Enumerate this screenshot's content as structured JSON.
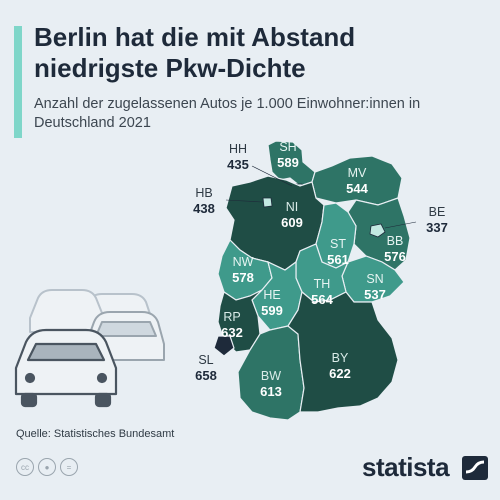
{
  "header": {
    "title": "Berlin hat die mit Abstand niedrigste Pkw-Dichte",
    "subtitle": "Anzahl der zugelassenen Autos je 1.000 Einwohner:innen in Deutschland 2021"
  },
  "colors": {
    "dark": "#1f4d45",
    "mid": "#2e7466",
    "teal": "#3f9a8b",
    "light": "#c3e9e2",
    "background": "#e8eef3",
    "text": "#1e2a3a"
  },
  "states": [
    {
      "code": "SH",
      "value": "589"
    },
    {
      "code": "HH",
      "value": "435"
    },
    {
      "code": "MV",
      "value": "544"
    },
    {
      "code": "HB",
      "value": "438"
    },
    {
      "code": "NI",
      "value": "609"
    },
    {
      "code": "BE",
      "value": "337"
    },
    {
      "code": "ST",
      "value": "561"
    },
    {
      "code": "BB",
      "value": "576"
    },
    {
      "code": "NW",
      "value": "578"
    },
    {
      "code": "SN",
      "value": "537"
    },
    {
      "code": "TH",
      "value": "564"
    },
    {
      "code": "HE",
      "value": "599"
    },
    {
      "code": "RP",
      "value": "632"
    },
    {
      "code": "SL",
      "value": "658"
    },
    {
      "code": "BY",
      "value": "622"
    },
    {
      "code": "BW",
      "value": "613"
    }
  ],
  "footer": {
    "source": "Quelle: Statistisches Bundesamt",
    "brand": "statista",
    "licence_icons": [
      "cc-icon",
      "attribution-icon",
      "no-derivatives-icon"
    ]
  }
}
